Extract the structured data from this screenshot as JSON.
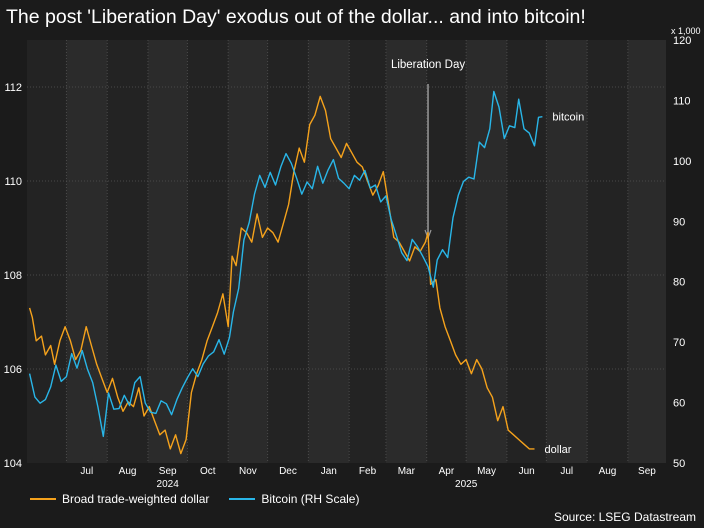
{
  "chart_data": {
    "type": "line",
    "title": "The post 'Liberation Day' exodus out of the dollar... and into bitcoin!",
    "source": "Source: LSEG Datastream",
    "x_range": [
      "2024-06-01",
      "2025-09-30"
    ],
    "month_ticks": [
      {
        "date": "2024-07-01",
        "label": "Jul"
      },
      {
        "date": "2024-08-01",
        "label": "Aug"
      },
      {
        "date": "2024-09-01",
        "label": "Sep"
      },
      {
        "date": "2024-10-01",
        "label": "Oct"
      },
      {
        "date": "2024-11-01",
        "label": "Nov"
      },
      {
        "date": "2024-12-01",
        "label": "Dec"
      },
      {
        "date": "2025-01-01",
        "label": "Jan"
      },
      {
        "date": "2025-02-01",
        "label": "Feb"
      },
      {
        "date": "2025-03-01",
        "label": "Mar"
      },
      {
        "date": "2025-04-01",
        "label": "Apr"
      },
      {
        "date": "2025-05-01",
        "label": "May"
      },
      {
        "date": "2025-06-01",
        "label": "Jun"
      },
      {
        "date": "2025-07-01",
        "label": "Jul"
      },
      {
        "date": "2025-08-01",
        "label": "Aug"
      },
      {
        "date": "2025-09-01",
        "label": "Sep"
      }
    ],
    "year_labels": [
      {
        "date": "2024-09-16",
        "label": "2024"
      },
      {
        "date": "2025-05-01",
        "label": "2025"
      }
    ],
    "left_axis": {
      "range": [
        104,
        113
      ],
      "ticks": [
        104,
        106,
        108,
        110,
        112
      ]
    },
    "right_axis": {
      "range": [
        50,
        120
      ],
      "ticks": [
        50,
        60,
        70,
        80,
        90,
        100,
        110,
        120
      ],
      "multiplier_label": "x 1,000"
    },
    "grid": true,
    "annotation": {
      "label": "Liberation Day",
      "date": "2025-04-02"
    },
    "series": [
      {
        "name": "Broad trade-weighted dollar",
        "end_label": "dollar",
        "color": "#f5a21c",
        "axis": "left",
        "points": [
          [
            "2024-06-03",
            107.3
          ],
          [
            "2024-06-05",
            107.1
          ],
          [
            "2024-06-08",
            106.6
          ],
          [
            "2024-06-12",
            106.7
          ],
          [
            "2024-06-15",
            106.3
          ],
          [
            "2024-06-19",
            106.5
          ],
          [
            "2024-06-22",
            106.1
          ],
          [
            "2024-06-26",
            106.6
          ],
          [
            "2024-06-30",
            106.9
          ],
          [
            "2024-07-04",
            106.6
          ],
          [
            "2024-07-08",
            106.2
          ],
          [
            "2024-07-12",
            106.4
          ],
          [
            "2024-07-16",
            106.9
          ],
          [
            "2024-07-20",
            106.5
          ],
          [
            "2024-07-24",
            106.1
          ],
          [
            "2024-07-28",
            105.8
          ],
          [
            "2024-08-01",
            105.5
          ],
          [
            "2024-08-05",
            105.8
          ],
          [
            "2024-08-09",
            105.4
          ],
          [
            "2024-08-13",
            105.1
          ],
          [
            "2024-08-17",
            105.3
          ],
          [
            "2024-08-21",
            105.2
          ],
          [
            "2024-08-25",
            105.6
          ],
          [
            "2024-08-29",
            105.0
          ],
          [
            "2024-09-02",
            105.2
          ],
          [
            "2024-09-06",
            104.9
          ],
          [
            "2024-09-10",
            104.6
          ],
          [
            "2024-09-14",
            104.7
          ],
          [
            "2024-09-18",
            104.3
          ],
          [
            "2024-09-22",
            104.6
          ],
          [
            "2024-09-26",
            104.2
          ],
          [
            "2024-09-30",
            104.5
          ],
          [
            "2024-10-04",
            105.5
          ],
          [
            "2024-10-08",
            105.9
          ],
          [
            "2024-10-12",
            106.2
          ],
          [
            "2024-10-16",
            106.6
          ],
          [
            "2024-10-20",
            106.9
          ],
          [
            "2024-10-24",
            107.2
          ],
          [
            "2024-10-28",
            107.6
          ],
          [
            "2024-11-01",
            106.9
          ],
          [
            "2024-11-04",
            108.4
          ],
          [
            "2024-11-07",
            108.2
          ],
          [
            "2024-11-11",
            109.0
          ],
          [
            "2024-11-15",
            108.9
          ],
          [
            "2024-11-19",
            108.7
          ],
          [
            "2024-11-23",
            109.3
          ],
          [
            "2024-11-27",
            108.8
          ],
          [
            "2024-12-01",
            109.0
          ],
          [
            "2024-12-05",
            108.9
          ],
          [
            "2024-12-09",
            108.7
          ],
          [
            "2024-12-13",
            109.1
          ],
          [
            "2024-12-17",
            109.5
          ],
          [
            "2024-12-21",
            110.2
          ],
          [
            "2024-12-25",
            110.7
          ],
          [
            "2024-12-29",
            110.4
          ],
          [
            "2025-01-02",
            111.2
          ],
          [
            "2025-01-06",
            111.4
          ],
          [
            "2025-01-10",
            111.8
          ],
          [
            "2025-01-14",
            111.5
          ],
          [
            "2025-01-18",
            110.9
          ],
          [
            "2025-01-22",
            110.7
          ],
          [
            "2025-01-26",
            110.5
          ],
          [
            "2025-01-30",
            110.8
          ],
          [
            "2025-02-03",
            110.6
          ],
          [
            "2025-02-07",
            110.4
          ],
          [
            "2025-02-11",
            110.3
          ],
          [
            "2025-02-15",
            110.0
          ],
          [
            "2025-02-19",
            109.7
          ],
          [
            "2025-02-23",
            109.9
          ],
          [
            "2025-02-27",
            110.2
          ],
          [
            "2025-03-03",
            109.5
          ],
          [
            "2025-03-07",
            108.8
          ],
          [
            "2025-03-11",
            108.7
          ],
          [
            "2025-03-15",
            108.5
          ],
          [
            "2025-03-19",
            108.3
          ],
          [
            "2025-03-23",
            108.6
          ],
          [
            "2025-03-27",
            108.5
          ],
          [
            "2025-03-31",
            108.7
          ],
          [
            "2025-04-02",
            108.9
          ],
          [
            "2025-04-04",
            107.8
          ],
          [
            "2025-04-08",
            107.9
          ],
          [
            "2025-04-11",
            107.3
          ],
          [
            "2025-04-15",
            106.9
          ],
          [
            "2025-04-19",
            106.6
          ],
          [
            "2025-04-23",
            106.3
          ],
          [
            "2025-04-27",
            106.1
          ],
          [
            "2025-05-01",
            106.2
          ],
          [
            "2025-05-05",
            105.9
          ],
          [
            "2025-05-09",
            106.2
          ],
          [
            "2025-05-13",
            106.0
          ],
          [
            "2025-05-17",
            105.6
          ],
          [
            "2025-05-21",
            105.4
          ],
          [
            "2025-05-25",
            104.9
          ],
          [
            "2025-05-29",
            105.2
          ],
          [
            "2025-06-02",
            104.7
          ],
          [
            "2025-06-06",
            104.6
          ],
          [
            "2025-06-10",
            104.5
          ],
          [
            "2025-06-14",
            104.4
          ],
          [
            "2025-06-18",
            104.3
          ],
          [
            "2025-06-22",
            104.3
          ]
        ]
      },
      {
        "name": "Bitcoin (RH Scale)",
        "end_label": "bitcoin",
        "color": "#29b6e8",
        "axis": "right",
        "points": [
          [
            "2024-06-03",
            64.8
          ],
          [
            "2024-06-07",
            60.9
          ],
          [
            "2024-06-11",
            59.9
          ],
          [
            "2024-06-15",
            60.5
          ],
          [
            "2024-06-19",
            62.6
          ],
          [
            "2024-06-23",
            66.2
          ],
          [
            "2024-06-27",
            63.5
          ],
          [
            "2024-07-01",
            64.3
          ],
          [
            "2024-07-05",
            68.1
          ],
          [
            "2024-07-09",
            65.7
          ],
          [
            "2024-07-13",
            68.6
          ],
          [
            "2024-07-17",
            65.5
          ],
          [
            "2024-07-21",
            63.3
          ],
          [
            "2024-07-25",
            59.2
          ],
          [
            "2024-07-29",
            54.4
          ],
          [
            "2024-08-02",
            61.6
          ],
          [
            "2024-08-06",
            58.9
          ],
          [
            "2024-08-10",
            59.0
          ],
          [
            "2024-08-14",
            61.2
          ],
          [
            "2024-08-18",
            59.5
          ],
          [
            "2024-08-22",
            63.3
          ],
          [
            "2024-08-26",
            64.3
          ],
          [
            "2024-08-30",
            59.9
          ],
          [
            "2024-09-03",
            58.4
          ],
          [
            "2024-09-07",
            58.2
          ],
          [
            "2024-09-11",
            60.3
          ],
          [
            "2024-09-15",
            59.8
          ],
          [
            "2024-09-19",
            58.0
          ],
          [
            "2024-09-23",
            60.5
          ],
          [
            "2024-09-27",
            62.4
          ],
          [
            "2024-10-01",
            64.1
          ],
          [
            "2024-10-05",
            65.6
          ],
          [
            "2024-10-09",
            64.3
          ],
          [
            "2024-10-13",
            66.4
          ],
          [
            "2024-10-17",
            67.7
          ],
          [
            "2024-10-21",
            68.4
          ],
          [
            "2024-10-25",
            70.4
          ],
          [
            "2024-10-29",
            68.0
          ],
          [
            "2024-11-02",
            70.8
          ],
          [
            "2024-11-05",
            75.0
          ],
          [
            "2024-11-09",
            78.9
          ],
          [
            "2024-11-13",
            86.9
          ],
          [
            "2024-11-17",
            89.8
          ],
          [
            "2024-11-21",
            94.5
          ],
          [
            "2024-11-25",
            97.6
          ],
          [
            "2024-11-29",
            95.6
          ],
          [
            "2024-12-03",
            98.1
          ],
          [
            "2024-12-07",
            96.0
          ],
          [
            "2024-12-11",
            99.0
          ],
          [
            "2024-12-15",
            101.2
          ],
          [
            "2024-12-19",
            99.6
          ],
          [
            "2024-12-23",
            97.2
          ],
          [
            "2024-12-27",
            94.5
          ],
          [
            "2024-12-31",
            96.5
          ],
          [
            "2025-01-04",
            95.4
          ],
          [
            "2025-01-08",
            99.1
          ],
          [
            "2025-01-12",
            96.3
          ],
          [
            "2025-01-16",
            98.5
          ],
          [
            "2025-01-20",
            100.2
          ],
          [
            "2025-01-24",
            97.1
          ],
          [
            "2025-01-28",
            96.3
          ],
          [
            "2025-02-01",
            95.4
          ],
          [
            "2025-02-05",
            97.6
          ],
          [
            "2025-02-09",
            96.8
          ],
          [
            "2025-02-13",
            98.4
          ],
          [
            "2025-02-17",
            95.5
          ],
          [
            "2025-02-21",
            96.0
          ],
          [
            "2025-02-25",
            93.2
          ],
          [
            "2025-03-01",
            94.2
          ],
          [
            "2025-03-05",
            90.3
          ],
          [
            "2025-03-09",
            87.6
          ],
          [
            "2025-03-13",
            84.8
          ],
          [
            "2025-03-17",
            83.5
          ],
          [
            "2025-03-21",
            87.0
          ],
          [
            "2025-03-25",
            85.8
          ],
          [
            "2025-03-29",
            84.2
          ],
          [
            "2025-04-02",
            82.5
          ],
          [
            "2025-04-06",
            79.1
          ],
          [
            "2025-04-09",
            83.6
          ],
          [
            "2025-04-13",
            85.3
          ],
          [
            "2025-04-17",
            84.0
          ],
          [
            "2025-04-21",
            90.6
          ],
          [
            "2025-04-25",
            94.3
          ],
          [
            "2025-04-29",
            96.6
          ],
          [
            "2025-05-03",
            97.3
          ],
          [
            "2025-05-07",
            97.0
          ],
          [
            "2025-05-11",
            103.1
          ],
          [
            "2025-05-15",
            102.2
          ],
          [
            "2025-05-19",
            105.3
          ],
          [
            "2025-05-22",
            111.5
          ],
          [
            "2025-05-26",
            108.9
          ],
          [
            "2025-05-30",
            103.7
          ],
          [
            "2025-06-03",
            105.8
          ],
          [
            "2025-06-07",
            105.5
          ],
          [
            "2025-06-10",
            110.2
          ],
          [
            "2025-06-14",
            105.3
          ],
          [
            "2025-06-18",
            104.6
          ],
          [
            "2025-06-22",
            102.5
          ],
          [
            "2025-06-25",
            107.2
          ],
          [
            "2025-06-28",
            107.3
          ]
        ]
      }
    ]
  }
}
